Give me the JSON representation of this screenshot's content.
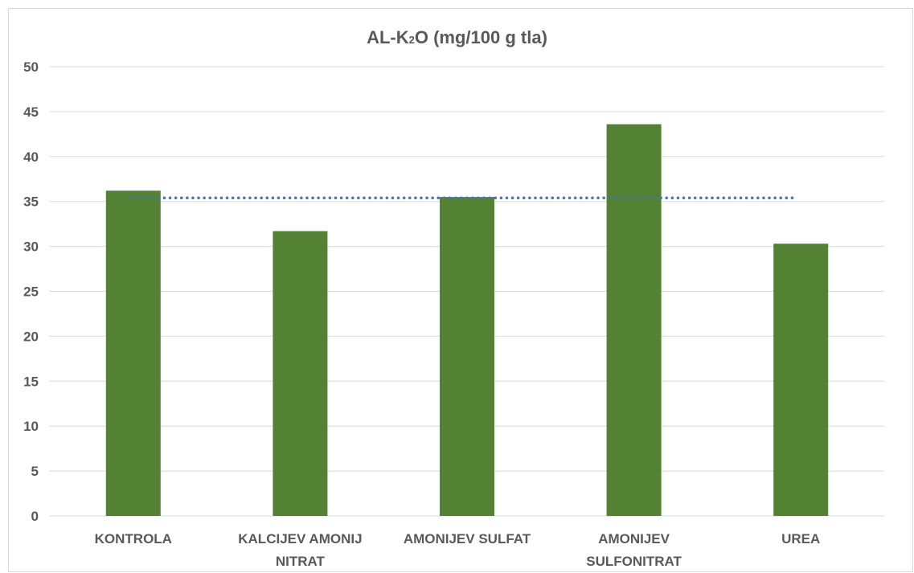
{
  "chart_data": {
    "type": "bar",
    "title_parts": [
      "AL-K",
      "2",
      "O (mg/100 g tla)"
    ],
    "categories": [
      [
        "KONTROLA"
      ],
      [
        "KALCIJEV AMONIJ",
        "NITRAT"
      ],
      [
        "AMONIJEV SULFAT"
      ],
      [
        "AMONIJEV",
        "SULFONITRAT"
      ],
      [
        "UREA"
      ]
    ],
    "values": [
      36.2,
      31.7,
      35.5,
      43.6,
      30.3
    ],
    "average_line": 35.4,
    "ylim": [
      0,
      50
    ],
    "yticks": [
      0,
      5,
      10,
      15,
      20,
      25,
      30,
      35,
      40,
      45,
      50
    ],
    "grid": true,
    "legend": "none",
    "colors": {
      "bar": "#548235",
      "average_line": "#4472c4",
      "grid": "#d9d9d9",
      "text": "#595959"
    }
  }
}
